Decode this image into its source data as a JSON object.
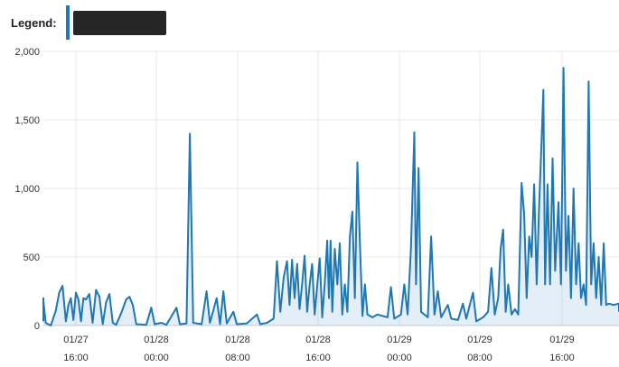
{
  "legend": {
    "label": "Legend:",
    "redacted": true
  },
  "colors": {
    "series": "#1f77b4",
    "grid": "#e8e8e8",
    "redaction": "#262626"
  },
  "chart_data": {
    "type": "area",
    "title": "",
    "xlabel": "",
    "ylabel": "",
    "ylim": [
      0,
      2000
    ],
    "grid": true,
    "legend_position": "top-left",
    "y_ticks": [
      "0",
      "500",
      "1,000",
      "1,500",
      "2,000"
    ],
    "x_ticks": [
      {
        "date": "01/27",
        "time": "16:00"
      },
      {
        "date": "01/28",
        "time": "00:00"
      },
      {
        "date": "01/28",
        "time": "08:00"
      },
      {
        "date": "01/28",
        "time": "16:00"
      },
      {
        "date": "01/29",
        "time": "00:00"
      },
      {
        "date": "01/29",
        "time": "08:00"
      },
      {
        "date": "01/29",
        "time": "16:00"
      }
    ],
    "x_start": "2024-01-27 12:00",
    "x_end": "2024-01-29 23:00",
    "series": [
      {
        "points": [
          [
            "01/27 12:00",
            30
          ],
          [
            "01/27 12:20",
            200
          ],
          [
            "01/27 12:40",
            180
          ],
          [
            "01/27 13:00",
            20
          ],
          [
            "01/27 13:30",
            0
          ],
          [
            "01/27 14:00",
            110
          ],
          [
            "01/27 14:20",
            240
          ],
          [
            "01/27 14:40",
            290
          ],
          [
            "01/27 15:00",
            30
          ],
          [
            "01/27 15:15",
            150
          ],
          [
            "01/27 15:30",
            200
          ],
          [
            "01/27 15:45",
            40
          ],
          [
            "01/27 16:00",
            240
          ],
          [
            "01/27 16:15",
            190
          ],
          [
            "01/27 16:30",
            30
          ],
          [
            "01/27 16:45",
            200
          ],
          [
            "01/27 17:00",
            190
          ],
          [
            "01/27 17:20",
            230
          ],
          [
            "01/27 17:40",
            20
          ],
          [
            "01/27 18:00",
            260
          ],
          [
            "01/27 18:20",
            210
          ],
          [
            "01/27 18:40",
            10
          ],
          [
            "01/27 19:00",
            170
          ],
          [
            "01/27 19:20",
            230
          ],
          [
            "01/27 19:40",
            20
          ],
          [
            "01/27 20:00",
            5
          ],
          [
            "01/27 20:30",
            90
          ],
          [
            "01/27 21:00",
            190
          ],
          [
            "01/27 21:20",
            210
          ],
          [
            "01/27 21:40",
            150
          ],
          [
            "01/27 22:00",
            10
          ],
          [
            "01/27 23:00",
            5
          ],
          [
            "01/27 23:30",
            130
          ],
          [
            "01/27 23:50",
            10
          ],
          [
            "01/28 00:30",
            20
          ],
          [
            "01/28 01:00",
            5
          ],
          [
            "01/28 02:00",
            130
          ],
          [
            "01/28 02:20",
            10
          ],
          [
            "01/28 03:00",
            15
          ],
          [
            "01/28 03:20",
            1400
          ],
          [
            "01/28 03:40",
            20
          ],
          [
            "01/28 04:30",
            10
          ],
          [
            "01/28 05:00",
            250
          ],
          [
            "01/28 05:20",
            20
          ],
          [
            "01/28 06:00",
            200
          ],
          [
            "01/28 06:20",
            10
          ],
          [
            "01/28 06:40",
            250
          ],
          [
            "01/28 07:00",
            15
          ],
          [
            "01/28 07:40",
            100
          ],
          [
            "01/28 08:00",
            10
          ],
          [
            "01/28 09:00",
            15
          ],
          [
            "01/28 10:00",
            80
          ],
          [
            "01/28 10:20",
            10
          ],
          [
            "01/28 11:00",
            20
          ],
          [
            "01/28 11:40",
            50
          ],
          [
            "01/28 12:00",
            470
          ],
          [
            "01/28 12:20",
            100
          ],
          [
            "01/28 12:40",
            350
          ],
          [
            "01/28 13:00",
            470
          ],
          [
            "01/28 13:15",
            150
          ],
          [
            "01/28 13:30",
            480
          ],
          [
            "01/28 13:45",
            200
          ],
          [
            "01/28 14:00",
            450
          ],
          [
            "01/28 14:15",
            120
          ],
          [
            "01/28 14:30",
            300
          ],
          [
            "01/28 14:45",
            510
          ],
          [
            "01/28 15:00",
            100
          ],
          [
            "01/28 15:15",
            300
          ],
          [
            "01/28 15:30",
            450
          ],
          [
            "01/28 15:45",
            80
          ],
          [
            "01/28 16:00",
            290
          ],
          [
            "01/28 16:15",
            490
          ],
          [
            "01/28 16:30",
            60
          ],
          [
            "01/28 16:45",
            300
          ],
          [
            "01/28 17:00",
            620
          ],
          [
            "01/28 17:10",
            200
          ],
          [
            "01/28 17:20",
            620
          ],
          [
            "01/28 17:30",
            100
          ],
          [
            "01/28 17:45",
            560
          ],
          [
            "01/28 18:00",
            300
          ],
          [
            "01/28 18:15",
            600
          ],
          [
            "01/28 18:30",
            80
          ],
          [
            "01/28 18:45",
            300
          ],
          [
            "01/28 19:00",
            100
          ],
          [
            "01/28 19:15",
            650
          ],
          [
            "01/28 19:30",
            830
          ],
          [
            "01/28 19:45",
            200
          ],
          [
            "01/28 20:00",
            1190
          ],
          [
            "01/28 20:15",
            600
          ],
          [
            "01/28 20:30",
            70
          ],
          [
            "01/28 20:45",
            300
          ],
          [
            "01/28 21:00",
            80
          ],
          [
            "01/28 21:30",
            60
          ],
          [
            "01/28 22:00",
            80
          ],
          [
            "01/28 23:00",
            60
          ],
          [
            "01/28 23:20",
            280
          ],
          [
            "01/28 23:40",
            50
          ],
          [
            "01/29 00:20",
            80
          ],
          [
            "01/29 00:40",
            300
          ],
          [
            "01/29 01:00",
            80
          ],
          [
            "01/29 01:20",
            570
          ],
          [
            "01/29 01:40",
            1410
          ],
          [
            "01/29 01:50",
            300
          ],
          [
            "01/29 02:05",
            1150
          ],
          [
            "01/29 02:20",
            100
          ],
          [
            "01/29 03:00",
            60
          ],
          [
            "01/29 03:20",
            650
          ],
          [
            "01/29 03:40",
            80
          ],
          [
            "01/29 04:00",
            250
          ],
          [
            "01/29 04:20",
            60
          ],
          [
            "01/29 05:00",
            150
          ],
          [
            "01/29 05:20",
            50
          ],
          [
            "01/29 06:00",
            40
          ],
          [
            "01/29 06:30",
            160
          ],
          [
            "01/29 06:50",
            50
          ],
          [
            "01/29 07:30",
            240
          ],
          [
            "01/29 07:50",
            30
          ],
          [
            "01/29 08:30",
            60
          ],
          [
            "01/29 09:00",
            100
          ],
          [
            "01/29 09:20",
            420
          ],
          [
            "01/29 09:40",
            80
          ],
          [
            "01/29 10:00",
            200
          ],
          [
            "01/29 10:15",
            560
          ],
          [
            "01/29 10:30",
            700
          ],
          [
            "01/29 10:45",
            100
          ],
          [
            "01/29 11:00",
            300
          ],
          [
            "01/29 11:20",
            80
          ],
          [
            "01/29 11:40",
            120
          ],
          [
            "01/29 12:00",
            80
          ],
          [
            "01/29 12:20",
            1040
          ],
          [
            "01/29 12:35",
            820
          ],
          [
            "01/29 12:50",
            200
          ],
          [
            "01/29 13:05",
            650
          ],
          [
            "01/29 13:20",
            500
          ],
          [
            "01/29 13:35",
            1030
          ],
          [
            "01/29 13:50",
            300
          ],
          [
            "01/29 14:05",
            890
          ],
          [
            "01/29 14:20",
            1380
          ],
          [
            "01/29 14:30",
            1720
          ],
          [
            "01/29 14:40",
            300
          ],
          [
            "01/29 14:55",
            1030
          ],
          [
            "01/29 15:10",
            300
          ],
          [
            "01/29 15:25",
            1220
          ],
          [
            "01/29 15:40",
            400
          ],
          [
            "01/29 16:00",
            900
          ],
          [
            "01/29 16:15",
            300
          ],
          [
            "01/29 16:30",
            1880
          ],
          [
            "01/29 16:45",
            400
          ],
          [
            "01/29 17:00",
            800
          ],
          [
            "01/29 17:15",
            200
          ],
          [
            "01/29 17:30",
            1000
          ],
          [
            "01/29 17:45",
            300
          ],
          [
            "01/29 18:00",
            600
          ],
          [
            "01/29 18:15",
            200
          ],
          [
            "01/29 18:30",
            300
          ],
          [
            "01/29 18:45",
            150
          ],
          [
            "01/29 19:00",
            1780
          ],
          [
            "01/29 19:15",
            300
          ],
          [
            "01/29 19:30",
            600
          ],
          [
            "01/29 19:45",
            200
          ],
          [
            "01/29 20:00",
            500
          ],
          [
            "01/29 20:15",
            150
          ],
          [
            "01/29 20:30",
            600
          ],
          [
            "01/29 20:45",
            150
          ],
          [
            "01/29 21:00",
            160
          ],
          [
            "01/29 21:30",
            150
          ],
          [
            "01/29 22:00",
            160
          ],
          [
            "01/29 22:30",
            140
          ],
          [
            "01/29 23:00",
            100
          ]
        ]
      }
    ]
  }
}
